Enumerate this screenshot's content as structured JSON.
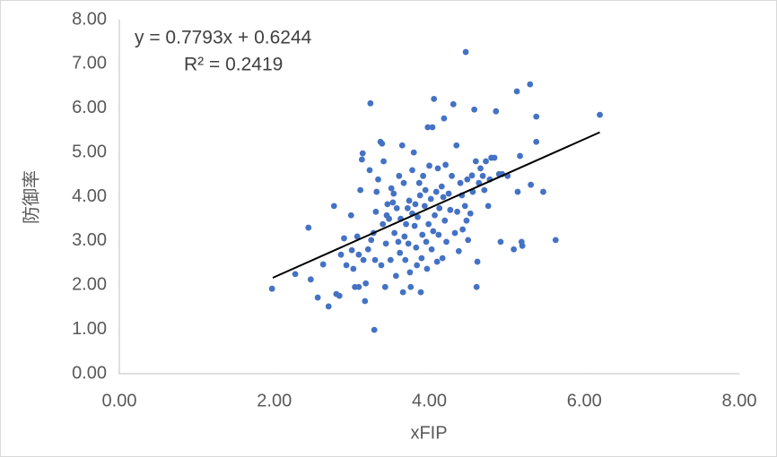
{
  "chart_data": {
    "type": "scatter",
    "xlabel": "xFIP",
    "ylabel": "防御率",
    "color": "#4472c4",
    "xlim": [
      0,
      8
    ],
    "ylim": [
      0,
      8
    ],
    "xticks": [
      {
        "value": 0,
        "label": "0.00"
      },
      {
        "value": 2,
        "label": "2.00"
      },
      {
        "value": 4,
        "label": "4.00"
      },
      {
        "value": 6,
        "label": "6.00"
      },
      {
        "value": 8,
        "label": "8.00"
      }
    ],
    "yticks": [
      {
        "value": 0,
        "label": "0.00"
      },
      {
        "value": 1,
        "label": "1.00"
      },
      {
        "value": 2,
        "label": "2.00"
      },
      {
        "value": 3,
        "label": "3.00"
      },
      {
        "value": 4,
        "label": "4.00"
      },
      {
        "value": 5,
        "label": "5.00"
      },
      {
        "value": 6,
        "label": "6.00"
      },
      {
        "value": 7,
        "label": "7.00"
      },
      {
        "value": 8,
        "label": "8.00"
      }
    ],
    "grid": false,
    "trendline": {
      "equation": "y = 0.7793x + 0.6244",
      "r2_label": "R² = 0.2419",
      "slope": 0.7793,
      "intercept": 0.6244,
      "color": "#000000",
      "xrange": [
        1.98,
        6.2
      ]
    },
    "x": [
      1.97,
      2.27,
      2.44,
      2.47,
      2.56,
      2.63,
      2.7,
      2.77,
      2.8,
      2.84,
      2.86,
      2.9,
      2.93,
      2.99,
      3.0,
      3.02,
      3.04,
      3.07,
      3.09,
      3.09,
      3.11,
      3.13,
      3.14,
      3.15,
      3.17,
      3.18,
      3.21,
      3.23,
      3.24,
      3.25,
      3.28,
      3.29,
      3.3,
      3.31,
      3.32,
      3.34,
      3.37,
      3.38,
      3.39,
      3.4,
      3.41,
      3.43,
      3.44,
      3.45,
      3.46,
      3.48,
      3.5,
      3.51,
      3.53,
      3.54,
      3.55,
      3.57,
      3.58,
      3.6,
      3.61,
      3.62,
      3.63,
      3.65,
      3.66,
      3.67,
      3.68,
      3.69,
      3.7,
      3.72,
      3.73,
      3.74,
      3.75,
      3.76,
      3.78,
      3.78,
      3.8,
      3.81,
      3.82,
      3.83,
      3.84,
      3.85,
      3.87,
      3.88,
      3.89,
      3.9,
      3.91,
      3.92,
      3.94,
      3.95,
      3.96,
      3.97,
      3.98,
      3.99,
      4.0,
      4.02,
      4.03,
      4.04,
      4.05,
      4.06,
      4.07,
      4.09,
      4.1,
      4.11,
      4.12,
      4.13,
      4.16,
      4.17,
      4.18,
      4.19,
      4.2,
      4.21,
      4.22,
      4.25,
      4.27,
      4.29,
      4.31,
      4.33,
      4.35,
      4.36,
      4.38,
      4.4,
      4.42,
      4.43,
      4.46,
      4.47,
      4.48,
      4.49,
      4.5,
      4.53,
      4.55,
      4.56,
      4.58,
      4.6,
      4.61,
      4.62,
      4.64,
      4.66,
      4.69,
      4.71,
      4.73,
      4.76,
      4.78,
      4.8,
      4.84,
      4.86,
      4.9,
      4.92,
      4.94,
      5.01,
      5.09,
      5.13,
      5.14,
      5.17,
      5.19,
      5.2,
      5.3,
      5.31,
      5.38,
      5.38,
      5.47,
      5.63,
      6.2
    ],
    "values": [
      1.92,
      2.25,
      3.3,
      2.13,
      1.72,
      2.47,
      1.52,
      3.79,
      1.8,
      1.76,
      2.69,
      3.06,
      2.45,
      3.58,
      2.79,
      2.37,
      1.96,
      3.1,
      2.69,
      1.96,
      4.15,
      4.84,
      4.98,
      2.57,
      1.64,
      2.04,
      2.81,
      4.6,
      6.11,
      3.02,
      3.18,
      0.99,
      2.57,
      3.66,
      4.11,
      4.39,
      5.24,
      2.45,
      5.2,
      3.38,
      4.8,
      1.96,
      2.94,
      3.58,
      3.83,
      3.5,
      2.57,
      4.19,
      3.87,
      4.07,
      3.18,
      2.21,
      3.74,
      2.98,
      4.47,
      2.73,
      3.5,
      5.16,
      1.84,
      4.31,
      3.1,
      2.57,
      3.38,
      3.74,
      2.94,
      3.91,
      2.29,
      1.96,
      4.6,
      3.62,
      5.0,
      3.34,
      3.83,
      2.85,
      2.45,
      3.54,
      4.31,
      4.03,
      1.84,
      2.61,
      3.14,
      4.47,
      3.79,
      4.15,
      2.98,
      2.37,
      5.57,
      3.38,
      4.7,
      3.95,
      2.81,
      5.57,
      3.22,
      6.21,
      3.58,
      4.11,
      2.53,
      4.64,
      3.14,
      3.74,
      4.23,
      2.61,
      3.99,
      5.77,
      3.46,
      4.72,
      2.98,
      4.07,
      3.7,
      4.47,
      6.09,
      3.18,
      5.16,
      3.66,
      2.77,
      4.31,
      4.03,
      3.26,
      3.79,
      7.27,
      3.46,
      4.39,
      3.02,
      3.62,
      4.48,
      4.11,
      5.97,
      4.8,
      1.96,
      2.53,
      4.31,
      4.64,
      4.47,
      4.15,
      4.8,
      3.79,
      4.39,
      4.88,
      4.88,
      5.93,
      4.51,
      2.98,
      4.51,
      4.47,
      2.81,
      6.38,
      4.11,
      4.92,
      2.98,
      2.89,
      6.54,
      4.27,
      5.81,
      5.24,
      4.11,
      3.02,
      5.85
    ]
  }
}
